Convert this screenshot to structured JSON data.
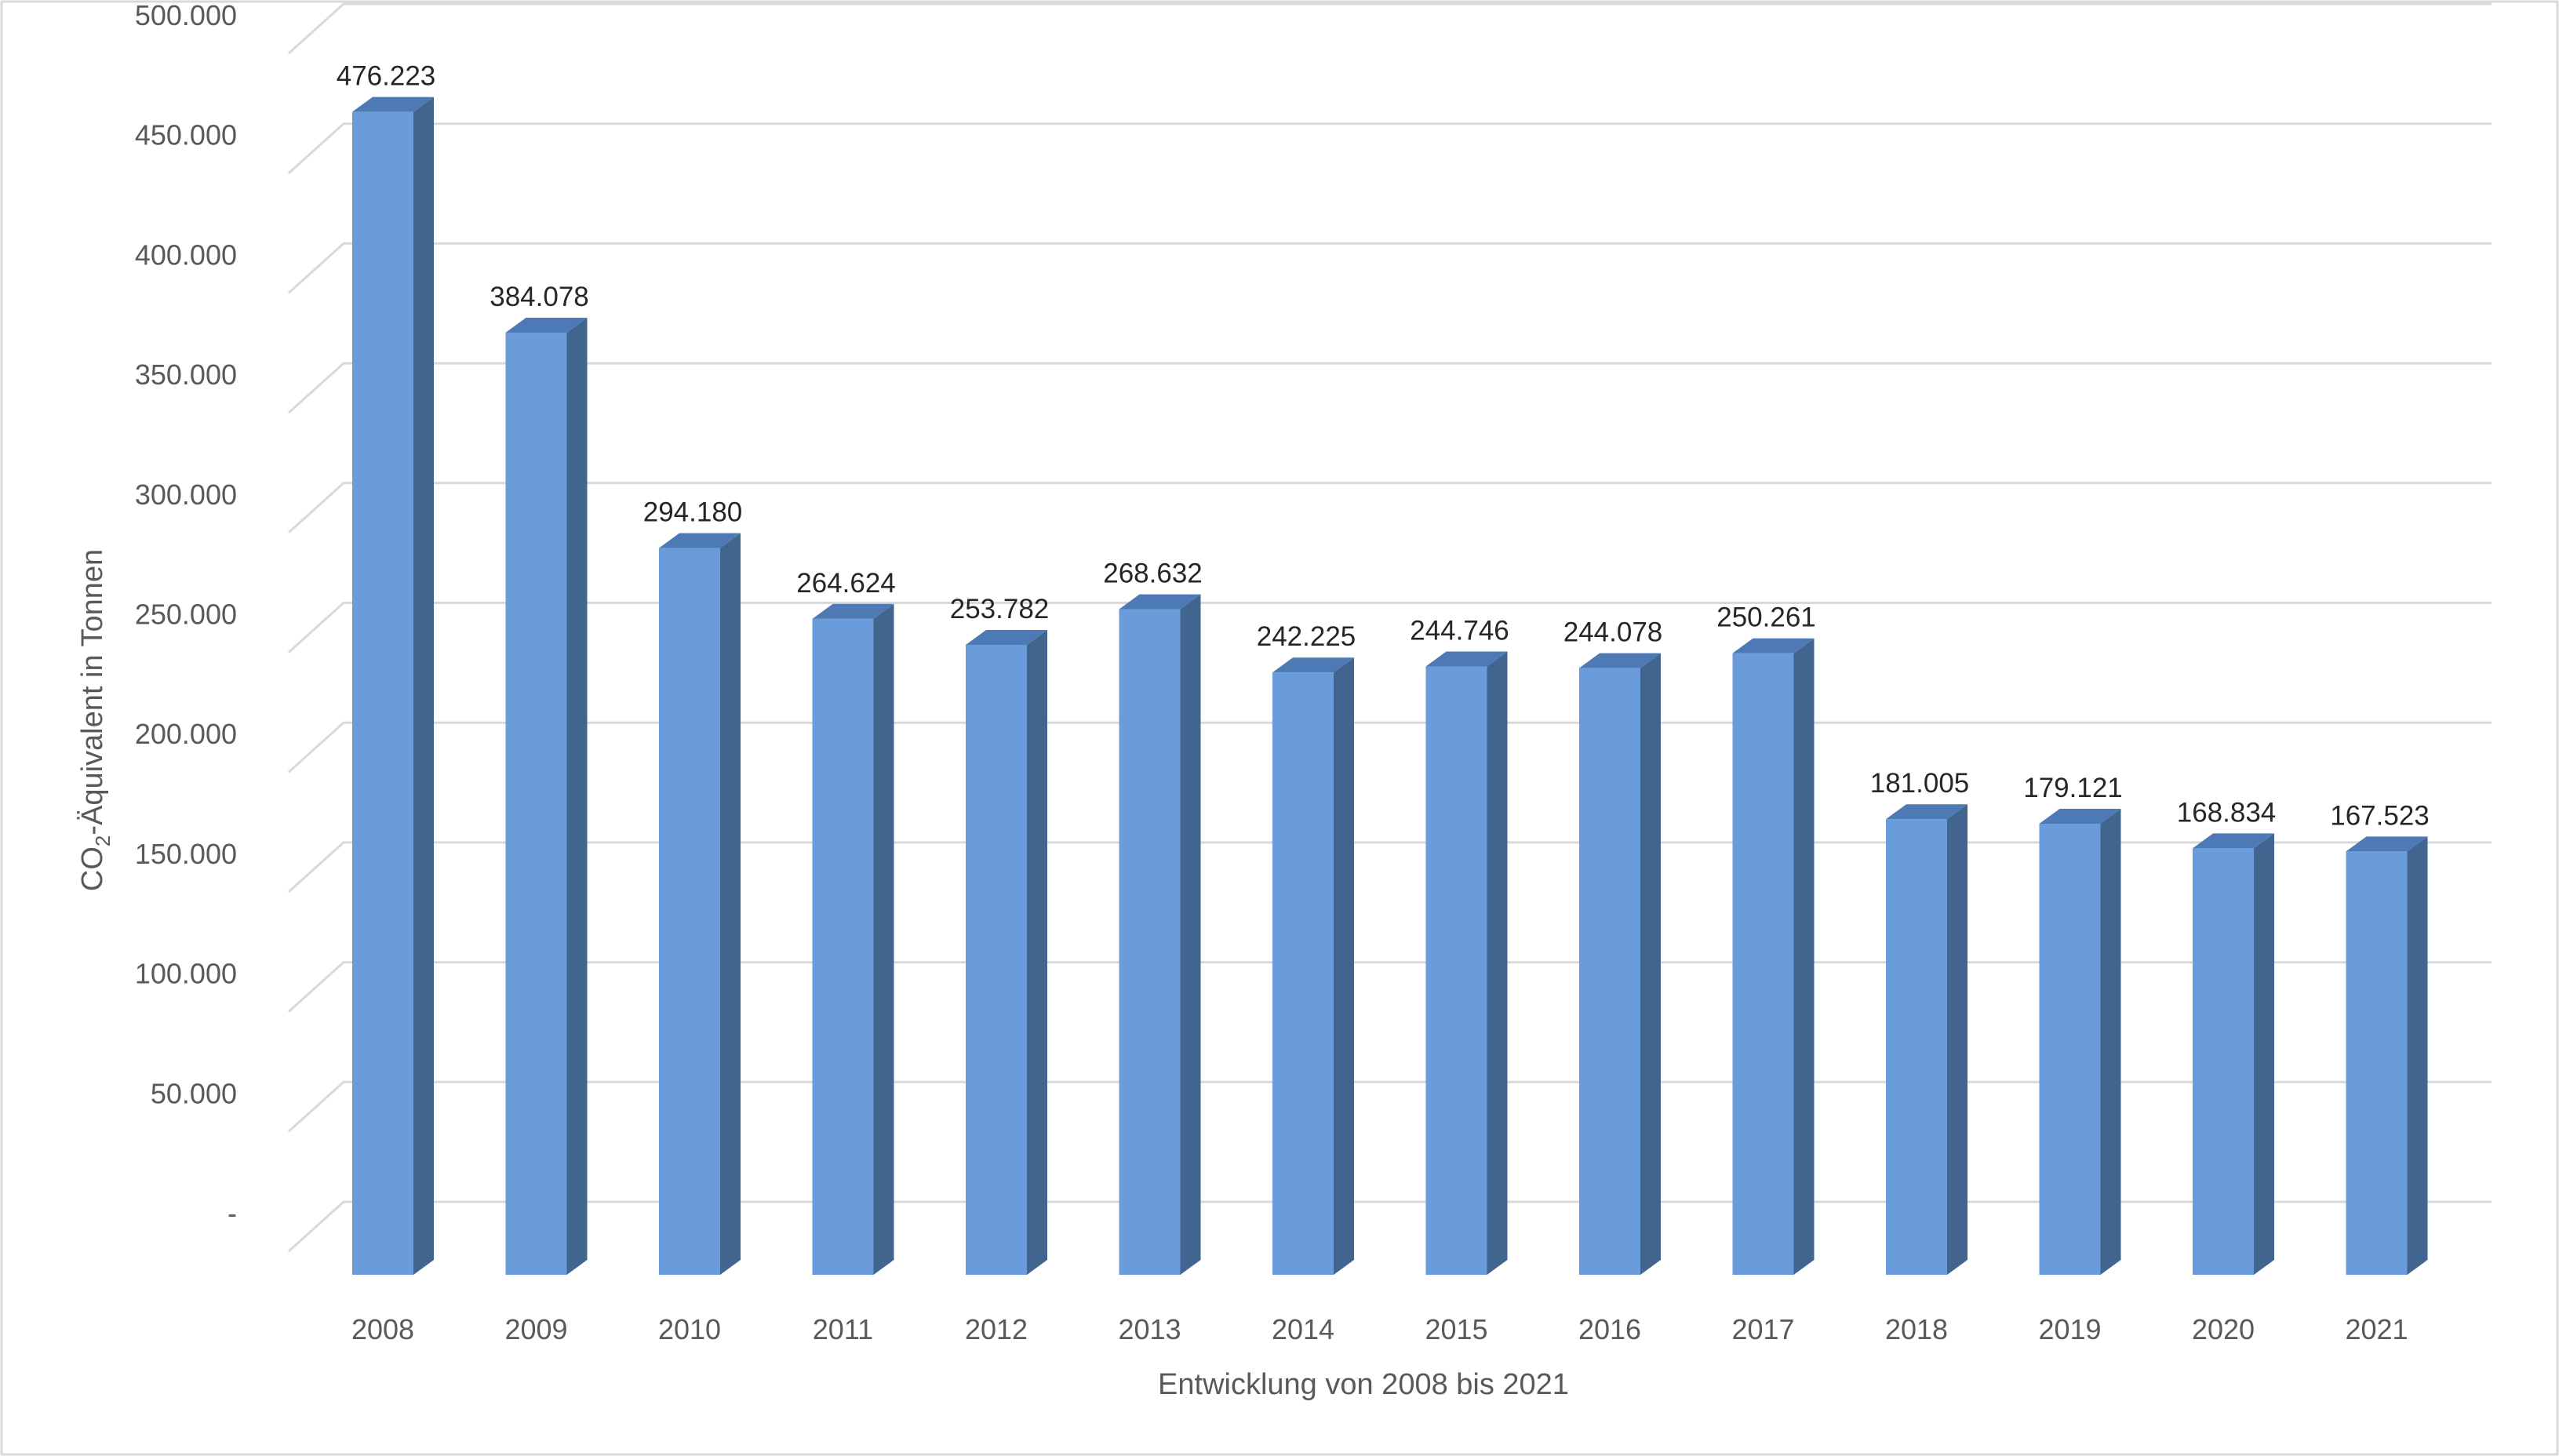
{
  "chart_data": {
    "type": "bar",
    "bar_style": "3d-column",
    "categories": [
      "2008",
      "2009",
      "2010",
      "2011",
      "2012",
      "2013",
      "2014",
      "2015",
      "2016",
      "2017",
      "2018",
      "2019",
      "2020",
      "2021"
    ],
    "values": [
      476223,
      384078,
      294180,
      264624,
      253782,
      268632,
      242225,
      244746,
      244078,
      250261,
      181005,
      179121,
      168834,
      167523
    ],
    "data_labels": [
      "476.223",
      "384.078",
      "294.180",
      "264.624",
      "253.782",
      "268.632",
      "242.225",
      "244.746",
      "244.078",
      "250.261",
      "181.005",
      "179.121",
      "168.834",
      "167.523"
    ],
    "title": "",
    "xlabel": "Entwicklung von 2008 bis 2021",
    "ylabel": "CO₂-Äquivalent in Tonnen",
    "ylim": [
      0,
      500000
    ],
    "yticks": [
      0,
      50000,
      100000,
      150000,
      200000,
      250000,
      300000,
      350000,
      400000,
      450000,
      500000
    ],
    "ytick_labels": [
      "-",
      "50.000",
      "100.000",
      "150.000",
      "200.000",
      "250.000",
      "300.000",
      "350.000",
      "400.000",
      "450.000",
      "500.000"
    ],
    "grid": true,
    "legend": "none",
    "colors": {
      "bar_front": "#6a9cdc",
      "bar_side": "#41658f",
      "bar_top": "#4d79b4",
      "grid": "#d9d9d9",
      "tick_text": "#595959",
      "label_text": "#262626"
    }
  }
}
